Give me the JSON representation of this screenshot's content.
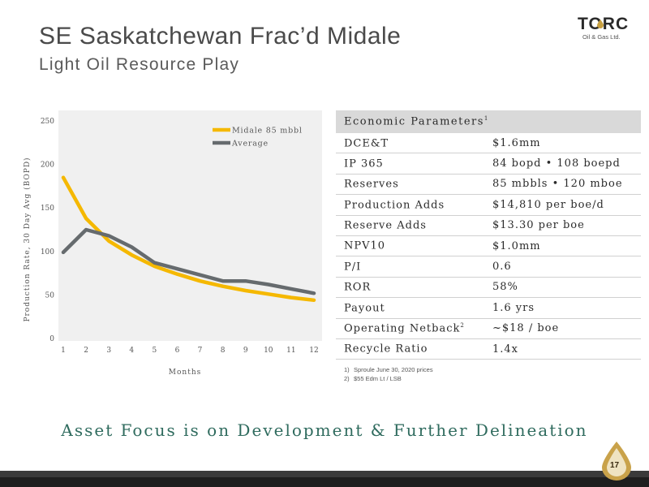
{
  "slide": {
    "title": "SE Saskatchewan Frac’d Midale",
    "subtitle": "Light Oil Resource Play",
    "banner": "Asset Focus is on Development & Further Delineation",
    "page_number": "17"
  },
  "logo": {
    "name": "TORC",
    "tagline": "Oil & Gas Ltd."
  },
  "chart_data": {
    "type": "line",
    "x": [
      1,
      2,
      3,
      4,
      5,
      6,
      7,
      8,
      9,
      10,
      11,
      12
    ],
    "series": [
      {
        "name": "Midale 85 mbbl",
        "color": "#f5b800",
        "values": [
          185,
          138,
          112,
          96,
          83,
          74,
          66,
          60,
          55,
          51,
          47,
          44
        ]
      },
      {
        "name": "Average",
        "color": "#666b6e",
        "values": [
          99,
          125,
          118,
          105,
          87,
          80,
          73,
          66,
          66,
          62,
          57,
          52
        ]
      }
    ],
    "xlabel": "Months",
    "ylabel": "Production Rate, 30 Day Avg (BOPD)",
    "xticks": [
      "1",
      "2",
      "3",
      "4",
      "5",
      "6",
      "7",
      "8",
      "9",
      "10",
      "11",
      "12"
    ],
    "yticks": [
      "0",
      "50",
      "100",
      "150",
      "200",
      "250"
    ],
    "xlim": [
      1,
      12
    ],
    "ylim": [
      0,
      250
    ],
    "grid": false,
    "legend_position": "top-right"
  },
  "table": {
    "header": "Economic Parameters",
    "header_sup": "1",
    "rows": [
      {
        "label": "DCE&T",
        "sup": "",
        "value": "$1.6mm"
      },
      {
        "label": "IP 365",
        "sup": "",
        "value": "84 bopd  •  108 boepd"
      },
      {
        "label": "Reserves",
        "sup": "",
        "value": "85 mbbls • 120 mboe"
      },
      {
        "label": "Production Adds",
        "sup": "",
        "value": "$14,810 per boe/d"
      },
      {
        "label": "Reserve Adds",
        "sup": "",
        "value": "$13.30 per boe"
      },
      {
        "label": "NPV10",
        "sup": "",
        "value": "$1.0mm"
      },
      {
        "label": "P/I",
        "sup": "",
        "value": "0.6"
      },
      {
        "label": "ROR",
        "sup": "",
        "value": "58%"
      },
      {
        "label": "Payout",
        "sup": "",
        "value": "1.6 yrs"
      },
      {
        "label": "Operating Netback",
        "sup": "2",
        "value": "~$18 / boe"
      },
      {
        "label": "Recycle Ratio",
        "sup": "",
        "value": "1.4x"
      }
    ]
  },
  "footnotes": [
    {
      "num": "1)",
      "text": "Sproule June 30, 2020 prices"
    },
    {
      "num": "2)",
      "text": "$55 Edm Lt / LSB"
    }
  ]
}
